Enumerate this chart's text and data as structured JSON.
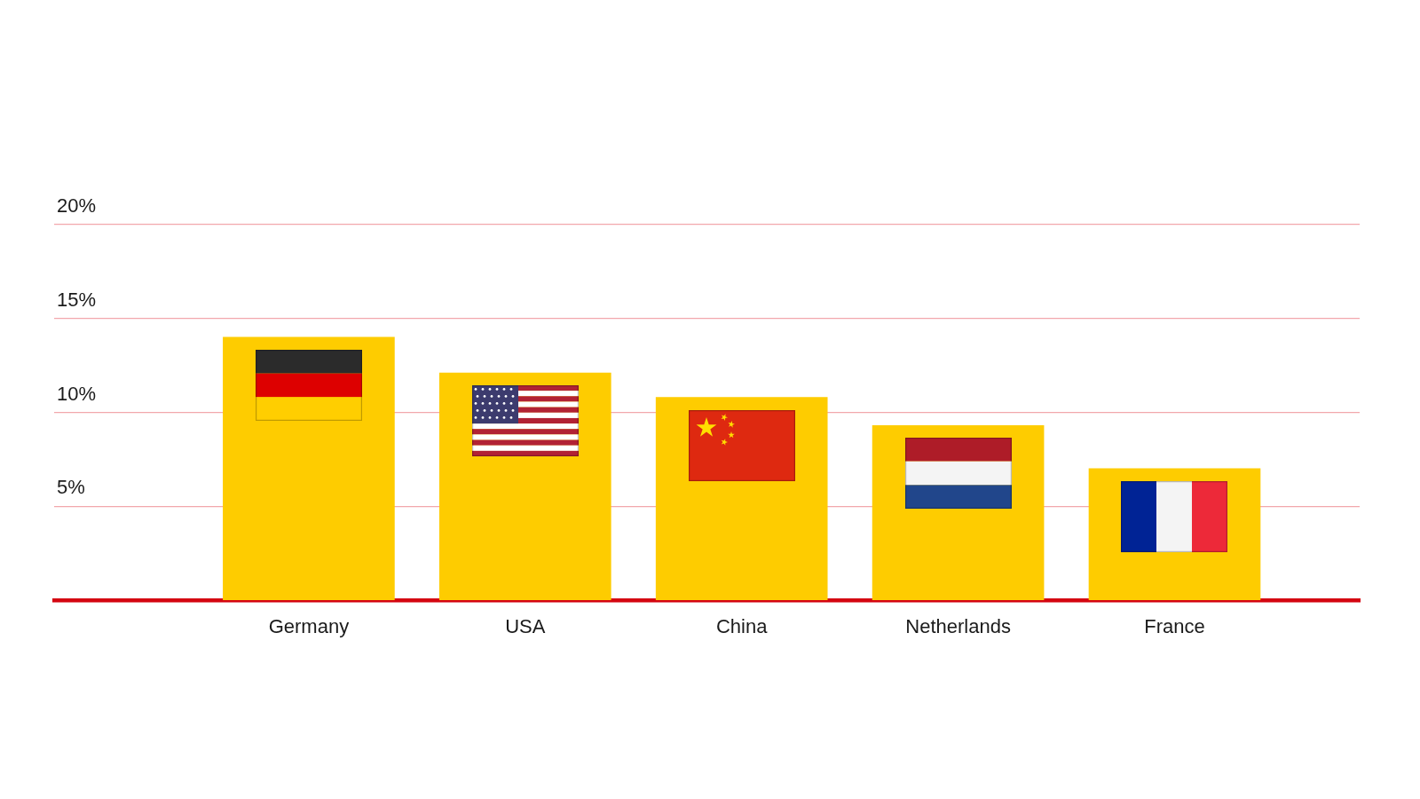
{
  "chart_data": {
    "type": "bar",
    "categories": [
      "Germany",
      "USA",
      "China",
      "Netherlands",
      "France"
    ],
    "values": [
      14,
      12.1,
      10.8,
      9.3,
      7
    ],
    "color": "#fecc00",
    "ylim": [
      0,
      20
    ],
    "yticks": [
      {
        "value": 5,
        "label": "5%"
      },
      {
        "value": 10,
        "label": "10%"
      },
      {
        "value": 15,
        "label": "15%"
      },
      {
        "value": 20,
        "label": "20%"
      }
    ],
    "grid": "y"
  }
}
